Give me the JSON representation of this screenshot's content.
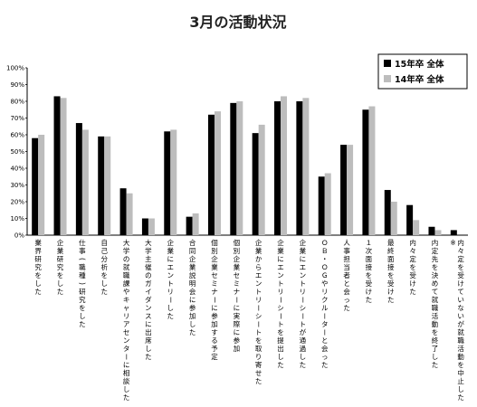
{
  "chart_data": {
    "type": "bar",
    "title": "3月の活動状況",
    "ylim": [
      0,
      100
    ],
    "yticks": [
      "0%",
      "10%",
      "20%",
      "30%",
      "40%",
      "50%",
      "60%",
      "70%",
      "80%",
      "90%",
      "100%"
    ],
    "grid": false,
    "legend_position": "top-right",
    "categories": [
      "業界研究をした",
      "企業研究をした",
      "仕事(職種)研究をした",
      "自己分析をした",
      "大学の就職課やキャリアセンターに相談した",
      "大学主催のガイダンスに出席した",
      "企業にエントリーした",
      "合同企業説明会に参加した",
      "個別企業セミナーに参加する予定",
      "個別企業セミナーに実際に参加",
      "企業からエントリーシートを取り寄せた",
      "企業にエントリーシートを提出した",
      "企業にエントリーシートが通過した",
      "ＯＢ・ＯＧやリクルーターと会った",
      "人事担当者と会った",
      "１次面接を受けた",
      "最終面接を受けた",
      "内々定を受けた",
      "内定先を決めて就職活動を終了した",
      "内々定を受けていないが就職活動を中止した※"
    ],
    "series": [
      {
        "name": "15年卒 全体",
        "color": "#000000",
        "values": [
          58,
          83,
          67,
          59,
          28,
          10,
          62,
          11,
          72,
          79,
          61,
          80,
          80,
          35,
          54,
          75,
          27,
          18,
          5,
          3
        ]
      },
      {
        "name": "14年卒 全体",
        "color": "#bdbdbd",
        "values": [
          60,
          82,
          63,
          59,
          25,
          10,
          63,
          13,
          74,
          80,
          66,
          83,
          82,
          37,
          54,
          77,
          20,
          9,
          3,
          0
        ]
      }
    ]
  }
}
